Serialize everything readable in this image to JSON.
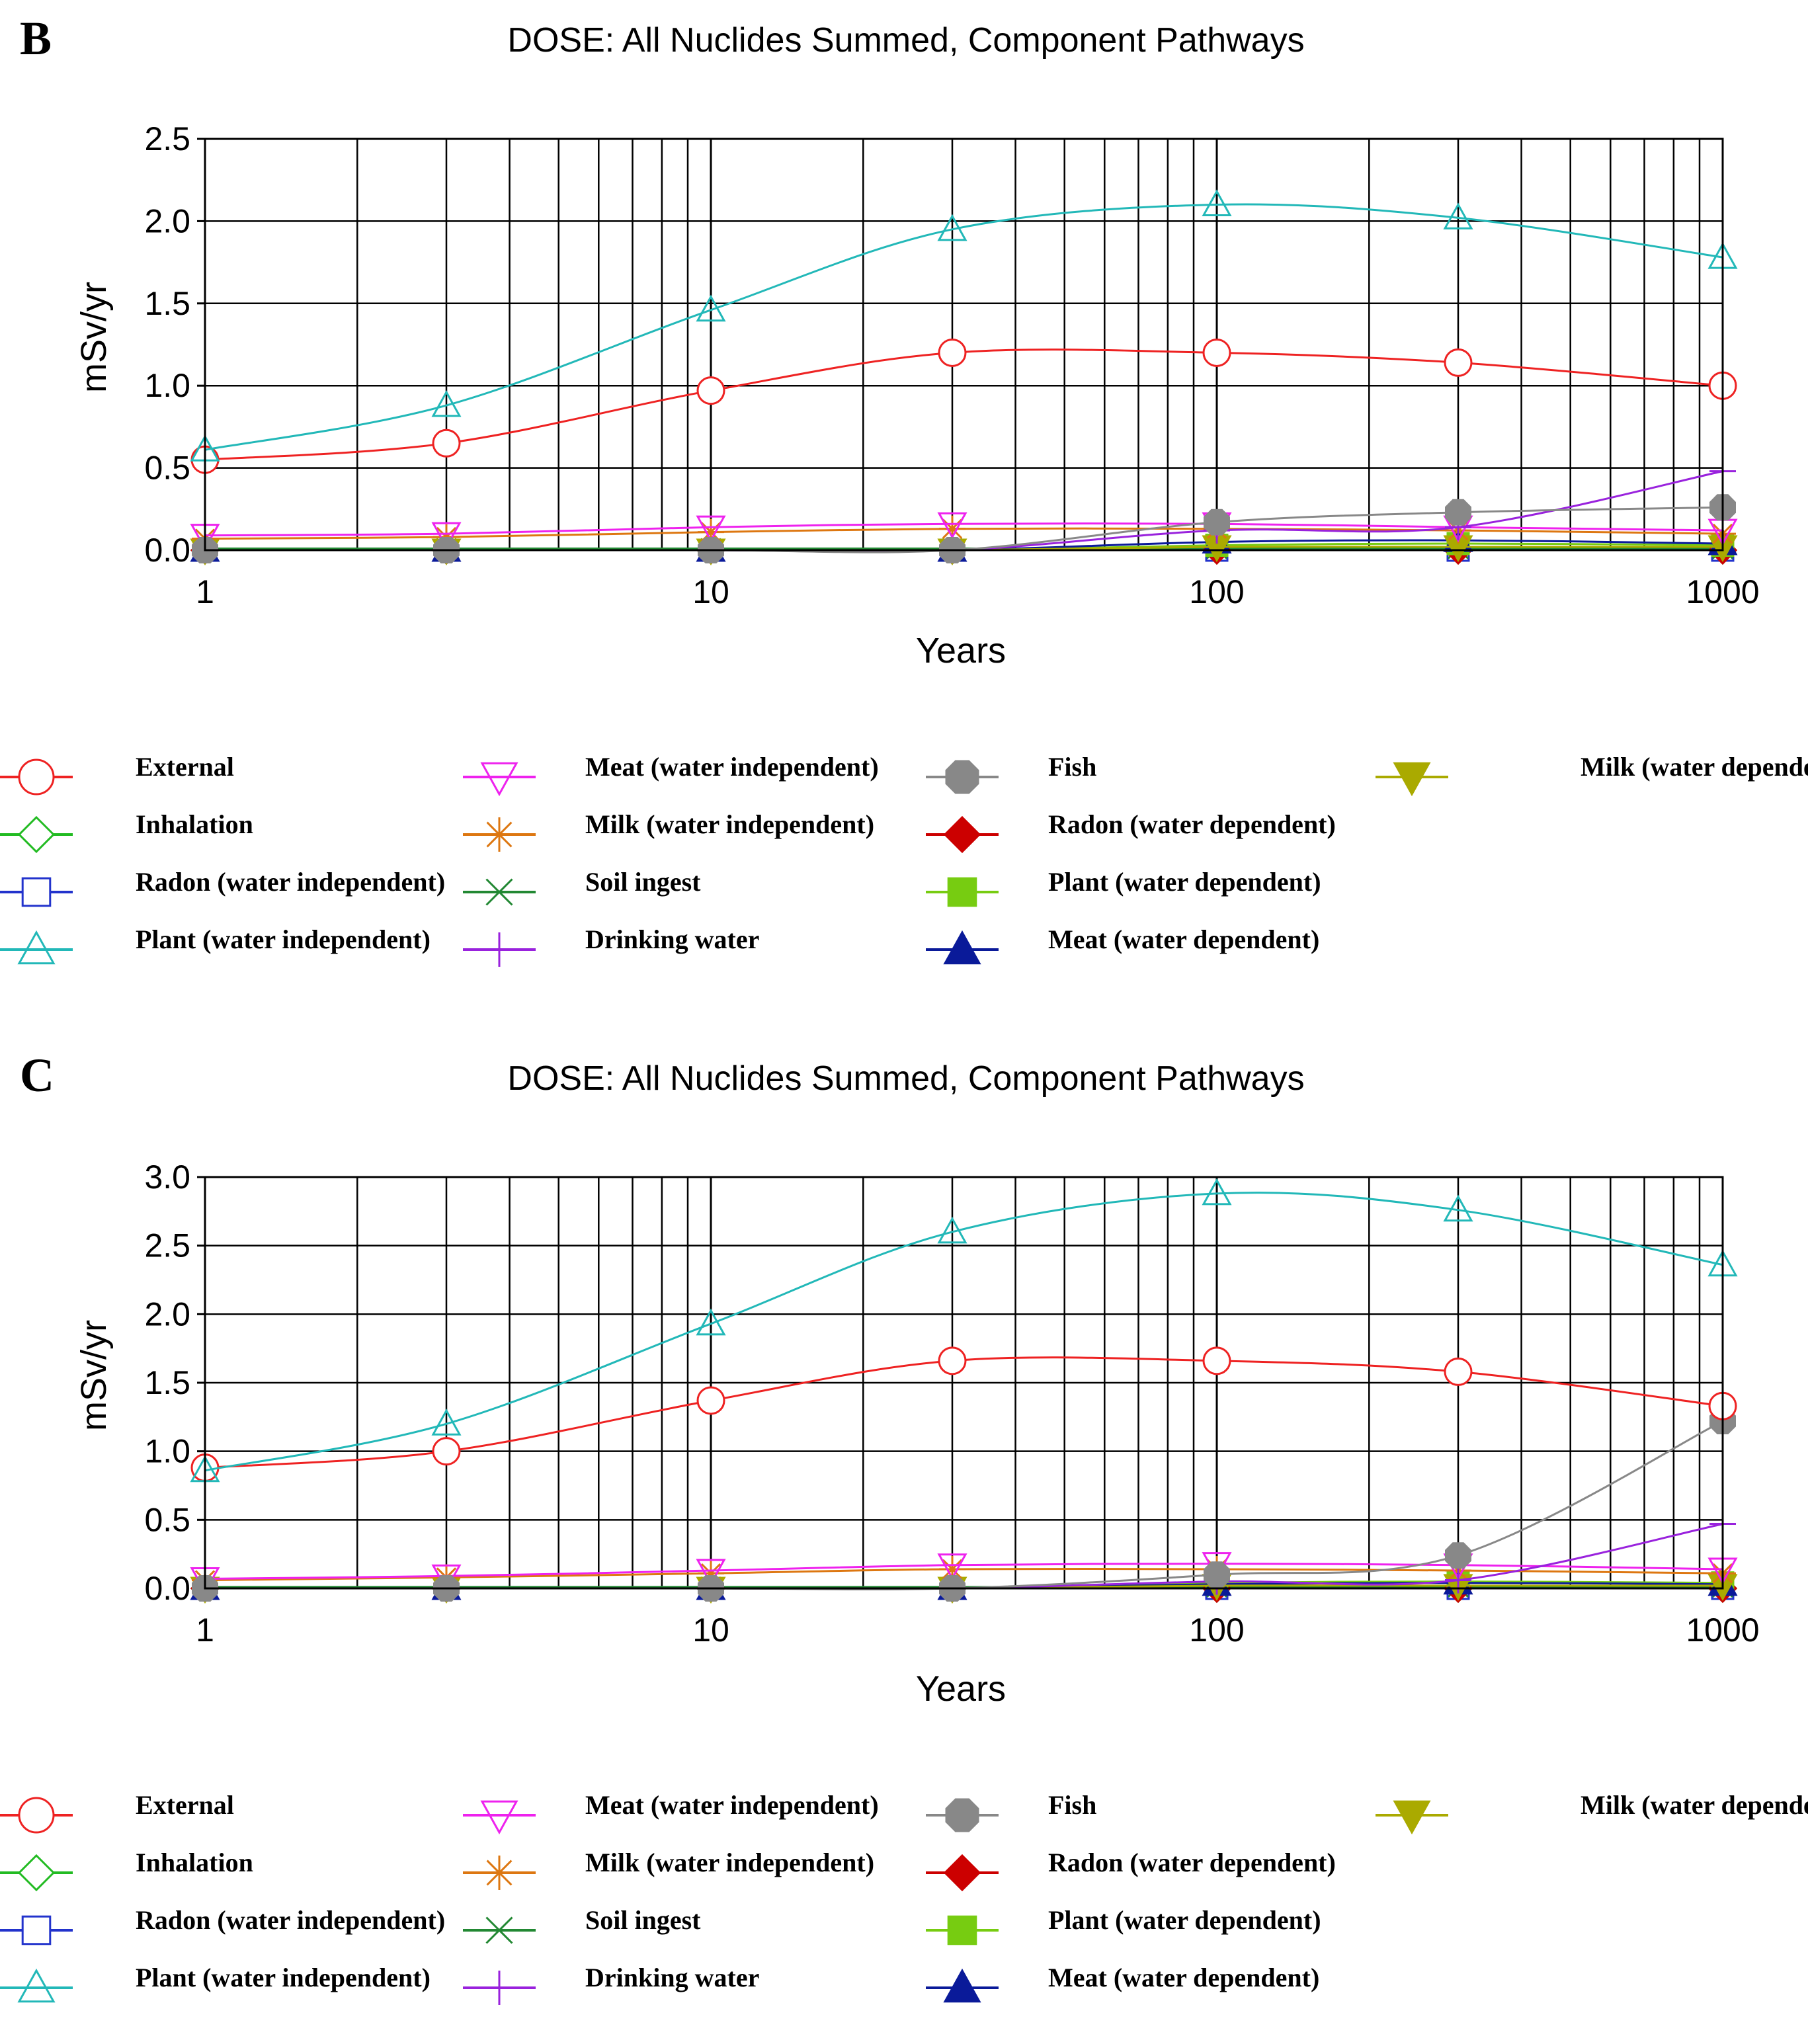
{
  "figure": {
    "panels": [
      {
        "letter": "B",
        "title": "DOSE: All Nuclides Summed, Component Pathways",
        "xlabel": "Years",
        "ylabel": "mSv/yr"
      },
      {
        "letter": "C",
        "title": "DOSE: All Nuclides Summed, Component Pathways",
        "xlabel": "Years",
        "ylabel": "mSv/yr"
      }
    ]
  },
  "legend": {
    "entries": [
      {
        "label": "External",
        "color": "#ee2222",
        "marker": "circle-open"
      },
      {
        "label": "Inhalation",
        "color": "#22bb22",
        "marker": "diamond-open"
      },
      {
        "label": "Radon (water independent)",
        "color": "#2233cc",
        "marker": "square-open"
      },
      {
        "label": "Plant (water independent)",
        "color": "#22b8b8",
        "marker": "triangle-open"
      },
      {
        "label": "Meat (water independent)",
        "color": "#ee22ee",
        "marker": "triangle-down-open"
      },
      {
        "label": "Milk (water independent)",
        "color": "#dd7711",
        "marker": "asterisk"
      },
      {
        "label": "Soil ingest",
        "color": "#228833",
        "marker": "x"
      },
      {
        "label": "Drinking water",
        "color": "#9922dd",
        "marker": "plus"
      },
      {
        "label": "Fish",
        "color": "#888888",
        "marker": "octagon-filled"
      },
      {
        "label": "Radon (water dependent)",
        "color": "#cc0000",
        "marker": "diamond-filled"
      },
      {
        "label": "Plant (water dependent)",
        "color": "#77cc11",
        "marker": "square-filled"
      },
      {
        "label": "Meat (water dependent)",
        "color": "#0a1a99",
        "marker": "triangle-filled"
      },
      {
        "label": "Milk (water dependent)",
        "color": "#aaaa00",
        "marker": "triangle-down-filled"
      }
    ]
  },
  "chart_data": [
    {
      "type": "line",
      "title": "DOSE: All Nuclides Summed, Component Pathways",
      "xlabel": "Years",
      "ylabel": "mSv/yr",
      "xscale": "log",
      "xlim": [
        1,
        1000
      ],
      "ylim": [
        0,
        2.5
      ],
      "yticks": [
        "0.0",
        "0.5",
        "1.0",
        "1.5",
        "2.0",
        "2.5"
      ],
      "xticks": [
        "1",
        "10",
        "100",
        "1000"
      ],
      "x": [
        1,
        3,
        10,
        30,
        100,
        300,
        1000
      ],
      "series": [
        {
          "name": "External",
          "values": [
            0.55,
            0.65,
            0.97,
            1.2,
            1.2,
            1.14,
            1.0
          ]
        },
        {
          "name": "Inhalation",
          "values": [
            0.0,
            0.0,
            0.0,
            0.0,
            0.0,
            0.0,
            0.0
          ]
        },
        {
          "name": "Radon (water independent)",
          "values": [
            0.0,
            0.0,
            0.0,
            0.0,
            0.0,
            0.0,
            0.0
          ]
        },
        {
          "name": "Plant (water independent)",
          "values": [
            0.61,
            0.88,
            1.46,
            1.95,
            2.1,
            2.02,
            1.78
          ]
        },
        {
          "name": "Meat (water independent)",
          "values": [
            0.09,
            0.1,
            0.14,
            0.16,
            0.16,
            0.14,
            0.12
          ]
        },
        {
          "name": "Milk (water independent)",
          "values": [
            0.07,
            0.08,
            0.11,
            0.13,
            0.13,
            0.12,
            0.1
          ]
        },
        {
          "name": "Soil ingest",
          "values": [
            0.01,
            0.01,
            0.01,
            0.01,
            0.01,
            0.01,
            0.01
          ]
        },
        {
          "name": "Drinking water",
          "values": [
            0.0,
            0.0,
            0.0,
            0.0,
            0.12,
            0.14,
            0.48
          ]
        },
        {
          "name": "Fish",
          "values": [
            0.0,
            0.0,
            0.0,
            0.0,
            0.17,
            0.23,
            0.26
          ]
        },
        {
          "name": "Radon (water dependent)",
          "values": [
            0.0,
            0.0,
            0.0,
            0.0,
            0.0,
            0.0,
            0.0
          ]
        },
        {
          "name": "Plant (water dependent)",
          "values": [
            0.0,
            0.0,
            0.0,
            0.0,
            0.03,
            0.04,
            0.03
          ]
        },
        {
          "name": "Meat (water dependent)",
          "values": [
            0.0,
            0.0,
            0.0,
            0.0,
            0.05,
            0.06,
            0.04
          ]
        },
        {
          "name": "Milk (water dependent)",
          "values": [
            0.0,
            0.0,
            0.0,
            0.0,
            0.02,
            0.02,
            0.02
          ]
        }
      ]
    },
    {
      "type": "line",
      "title": "DOSE: All Nuclides Summed, Component Pathways",
      "xlabel": "Years",
      "ylabel": "mSv/yr",
      "xscale": "log",
      "xlim": [
        1,
        1000
      ],
      "ylim": [
        0,
        3.0
      ],
      "yticks": [
        "0.0",
        "0.5",
        "1.0",
        "1.5",
        "2.0",
        "2.5",
        "3.0"
      ],
      "xticks": [
        "1",
        "10",
        "100",
        "1000"
      ],
      "x": [
        1,
        3,
        10,
        30,
        100,
        300,
        1000
      ],
      "series": [
        {
          "name": "External",
          "values": [
            0.88,
            1.0,
            1.37,
            1.66,
            1.66,
            1.58,
            1.33
          ]
        },
        {
          "name": "Inhalation",
          "values": [
            0.0,
            0.0,
            0.0,
            0.0,
            0.0,
            0.0,
            0.0
          ]
        },
        {
          "name": "Radon (water independent)",
          "values": [
            0.0,
            0.0,
            0.0,
            0.0,
            0.0,
            0.0,
            0.0
          ]
        },
        {
          "name": "Plant (water independent)",
          "values": [
            0.86,
            1.2,
            1.93,
            2.6,
            2.88,
            2.76,
            2.36
          ]
        },
        {
          "name": "Meat (water independent)",
          "values": [
            0.07,
            0.09,
            0.13,
            0.17,
            0.18,
            0.17,
            0.14
          ]
        },
        {
          "name": "Milk (water independent)",
          "values": [
            0.06,
            0.08,
            0.11,
            0.14,
            0.14,
            0.13,
            0.11
          ]
        },
        {
          "name": "Soil ingest",
          "values": [
            0.01,
            0.01,
            0.01,
            0.01,
            0.01,
            0.01,
            0.01
          ]
        },
        {
          "name": "Drinking water",
          "values": [
            0.0,
            0.0,
            0.0,
            0.0,
            0.05,
            0.06,
            0.47
          ]
        },
        {
          "name": "Fish",
          "values": [
            0.0,
            0.0,
            0.0,
            0.0,
            0.1,
            0.24,
            1.22
          ]
        },
        {
          "name": "Radon (water dependent)",
          "values": [
            0.0,
            0.0,
            0.0,
            0.0,
            0.0,
            0.0,
            0.0
          ]
        },
        {
          "name": "Plant (water dependent)",
          "values": [
            0.0,
            0.0,
            0.0,
            0.0,
            0.04,
            0.05,
            0.04
          ]
        },
        {
          "name": "Meat (water dependent)",
          "values": [
            0.0,
            0.0,
            0.0,
            0.0,
            0.03,
            0.04,
            0.03
          ]
        },
        {
          "name": "Milk (water dependent)",
          "values": [
            0.0,
            0.0,
            0.0,
            0.0,
            0.02,
            0.02,
            0.02
          ]
        }
      ]
    }
  ]
}
